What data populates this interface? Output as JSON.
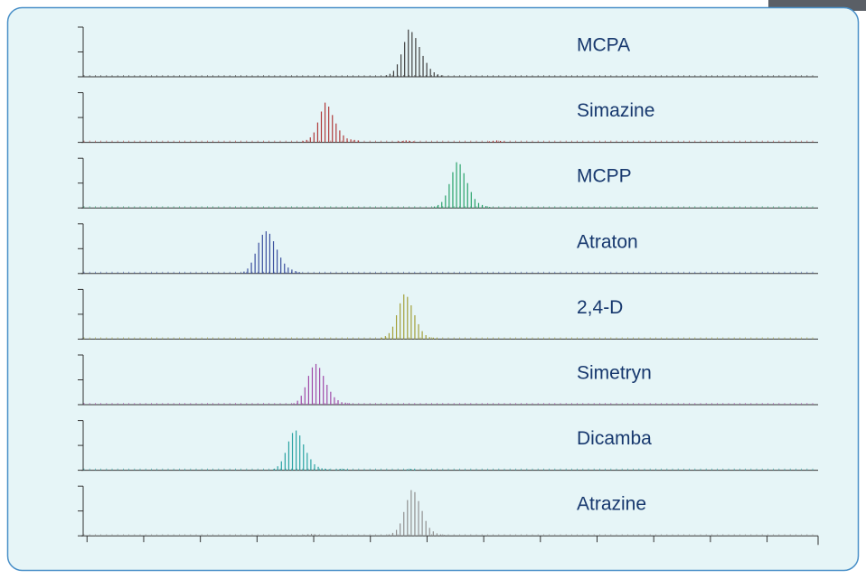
{
  "chart_data": {
    "type": "chromatogram",
    "xlim": [
      -0.1,
      12.9
    ],
    "xticks": [
      0,
      1,
      2,
      3,
      4,
      5,
      6,
      7,
      8,
      9,
      10,
      11,
      12
    ],
    "ylim": [
      0,
      100
    ],
    "yticks": [
      0,
      50,
      100
    ],
    "series": [
      {
        "name": "MCPA",
        "color": "#404040",
        "x": [
          5.28,
          5.345,
          5.41,
          5.475,
          5.54,
          5.605,
          5.67,
          5.735,
          5.8,
          5.865,
          5.93,
          5.995,
          6.06,
          6.125,
          6.19,
          6.255
        ],
        "values": [
          3,
          6,
          12,
          25,
          45,
          70,
          95,
          90,
          78,
          60,
          42,
          28,
          16,
          9,
          5,
          3
        ]
      },
      {
        "name": "Simazine",
        "color": "#b03a3a",
        "x": [
          3.81,
          3.875,
          3.94,
          4.005,
          4.07,
          4.135,
          4.2,
          4.265,
          4.33,
          4.395,
          4.46,
          4.525,
          4.59,
          4.655,
          4.72,
          4.785,
          5.5,
          5.565,
          5.63,
          5.695,
          5.76,
          7.1,
          7.165,
          7.23,
          7.295,
          7.36
        ],
        "values": [
          3,
          5,
          10,
          20,
          40,
          62,
          80,
          72,
          55,
          38,
          24,
          14,
          8,
          6,
          5,
          4,
          2,
          3,
          4,
          3,
          2,
          2,
          3,
          4,
          3,
          2
        ]
      },
      {
        "name": "MCPP",
        "color": "#2aa36b",
        "x": [
          6.13,
          6.195,
          6.26,
          6.325,
          6.39,
          6.455,
          6.52,
          6.585,
          6.65,
          6.715,
          6.78,
          6.845,
          6.91,
          6.975,
          7.04,
          7.105
        ],
        "values": [
          3,
          6,
          12,
          25,
          48,
          72,
          92,
          88,
          70,
          50,
          32,
          18,
          10,
          6,
          4,
          2
        ]
      },
      {
        "name": "Atraton",
        "color": "#3a4f9e",
        "x": [
          2.77,
          2.835,
          2.9,
          2.965,
          3.03,
          3.095,
          3.16,
          3.225,
          3.29,
          3.355,
          3.42,
          3.485,
          3.55,
          3.615,
          3.68,
          3.745
        ],
        "values": [
          4,
          10,
          22,
          40,
          62,
          78,
          85,
          80,
          65,
          48,
          32,
          20,
          12,
          8,
          5,
          3
        ]
      },
      {
        "name": "2,4-D",
        "color": "#a3a03a",
        "x": [
          5.2,
          5.265,
          5.33,
          5.395,
          5.46,
          5.525,
          5.59,
          5.655,
          5.72,
          5.785,
          5.85,
          5.915,
          5.98,
          6.045,
          6.11,
          6.175
        ],
        "values": [
          3,
          6,
          12,
          25,
          48,
          72,
          90,
          85,
          68,
          48,
          30,
          16,
          8,
          4,
          3,
          2
        ]
      },
      {
        "name": "Simetryn",
        "color": "#a04aa8",
        "x": [
          3.65,
          3.715,
          3.78,
          3.845,
          3.91,
          3.975,
          4.04,
          4.105,
          4.17,
          4.235,
          4.3,
          4.365,
          4.43,
          4.495,
          4.56,
          4.625
        ],
        "values": [
          3,
          8,
          18,
          35,
          58,
          75,
          82,
          74,
          58,
          40,
          26,
          15,
          9,
          5,
          4,
          3
        ]
      },
      {
        "name": "Dicamba",
        "color": "#2aa3a3",
        "x": [
          3.3,
          3.365,
          3.43,
          3.495,
          3.56,
          3.625,
          3.69,
          3.755,
          3.82,
          3.885,
          3.95,
          4.015,
          4.08,
          4.145,
          4.21,
          4.275,
          4.4,
          4.465,
          4.53,
          4.595,
          5.65,
          5.715,
          5.78
        ],
        "values": [
          3,
          8,
          18,
          35,
          58,
          75,
          80,
          70,
          52,
          35,
          22,
          12,
          7,
          4,
          3,
          2,
          2,
          3,
          3,
          2,
          2,
          3,
          2
        ]
      },
      {
        "name": "Atrazine",
        "color": "#909090",
        "x": [
          3.83,
          3.895,
          3.96,
          4.025,
          4.09,
          5.33,
          5.395,
          5.46,
          5.525,
          5.59,
          5.655,
          5.72,
          5.785,
          5.85,
          5.915,
          5.98,
          6.045,
          6.11,
          6.175,
          6.24,
          6.305
        ],
        "values": [
          2,
          3,
          4,
          3,
          2,
          3,
          6,
          12,
          25,
          48,
          72,
          92,
          88,
          70,
          50,
          30,
          16,
          9,
          5,
          3,
          2
        ]
      }
    ]
  }
}
